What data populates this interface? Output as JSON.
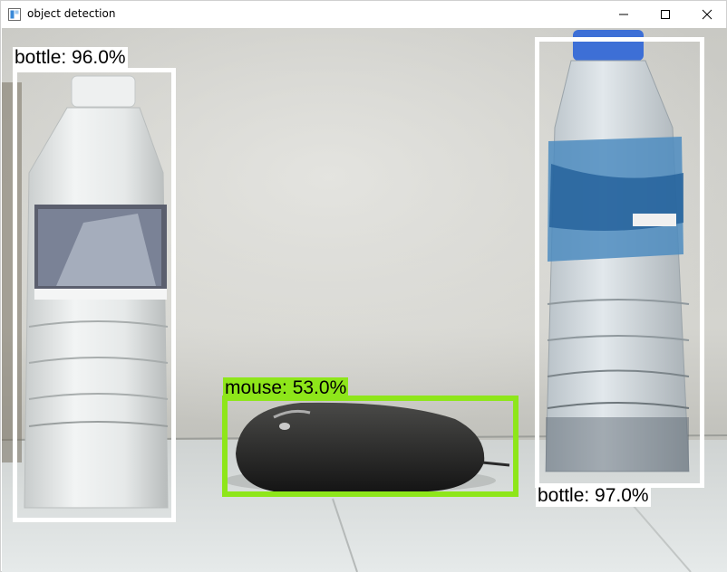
{
  "window": {
    "title": "object detection",
    "controls": {
      "minimize": "minimize",
      "maximize": "maximize",
      "close": "close"
    }
  },
  "colors": {
    "bottle_box": "#ffffff",
    "mouse_box": "#8ee61a"
  },
  "detections": [
    {
      "label": "bottle: 96.0%",
      "class": "bottle",
      "score": 96.0
    },
    {
      "label": "bottle: 97.0%",
      "class": "bottle",
      "score": 97.0
    },
    {
      "label": "mouse: 53.0%",
      "class": "mouse",
      "score": 53.0
    }
  ]
}
